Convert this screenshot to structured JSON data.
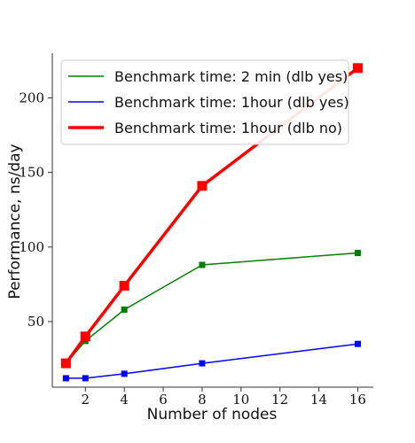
{
  "chart_data": {
    "type": "line",
    "xlabel": "Number of nodes",
    "ylabel": "Performance, ns/day",
    "xlim": [
      0.3,
      16.8
    ],
    "ylim": [
      6,
      230
    ],
    "xticks": [
      2,
      4,
      6,
      8,
      10,
      12,
      14,
      16
    ],
    "yticks": [
      50,
      100,
      150,
      200
    ],
    "grid": false,
    "legend_position": "top-left",
    "series": [
      {
        "name": "Benchmark time: 2 min (dlb yes)",
        "color": "#008000",
        "line_width": 1.5,
        "marker_size": 7,
        "x": [
          1,
          2,
          4,
          8,
          16
        ],
        "y": [
          22,
          37,
          58,
          88,
          96
        ]
      },
      {
        "name": "Benchmark time: 1hour (dlb yes)",
        "color": "#0000ff",
        "line_width": 1.5,
        "marker_size": 7,
        "x": [
          1,
          2,
          4,
          8,
          16
        ],
        "y": [
          12,
          12,
          15,
          22,
          35
        ]
      },
      {
        "name": "Benchmark time: 1hour (dlb no)",
        "color": "#ff0000",
        "line_width": 3.5,
        "marker_size": 11,
        "x": [
          1,
          2,
          4,
          8,
          16
        ],
        "y": [
          22,
          40,
          74,
          141,
          220
        ]
      }
    ]
  }
}
